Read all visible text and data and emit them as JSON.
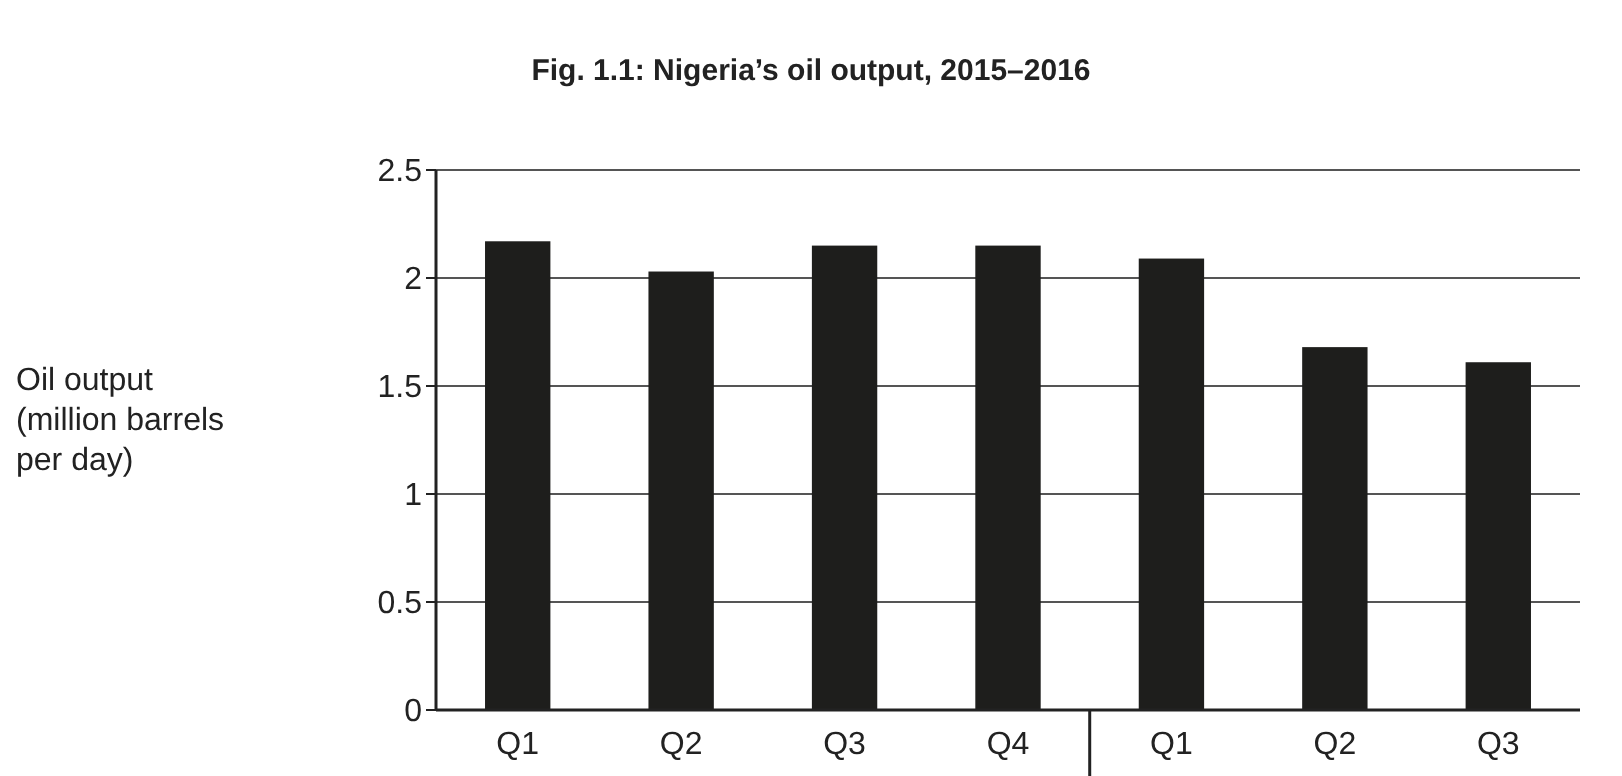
{
  "chart_data": {
    "type": "bar",
    "title": "Fig. 1.1: Nigeria’s oil output, 2015–2016",
    "ylabel": "Oil output (million barrels per day)",
    "categories": [
      "Q1",
      "Q2",
      "Q3",
      "Q4",
      "Q1",
      "Q2",
      "Q3"
    ],
    "series": [
      {
        "color": "#1e1e1c",
        "values": [
          2.17,
          2.03,
          2.15,
          2.15,
          2.09,
          1.68,
          1.61
        ]
      }
    ],
    "ylim": [
      0,
      2.5
    ],
    "yticks": [
      0,
      0.5,
      1,
      1.5,
      2,
      2.5
    ],
    "grid": "y"
  }
}
